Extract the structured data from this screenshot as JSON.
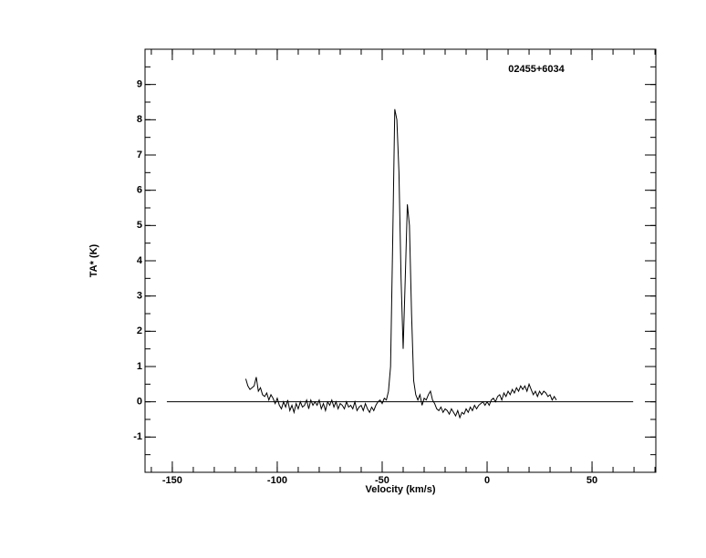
{
  "chart_data": {
    "type": "line",
    "annotation": "02455+6034",
    "xlabel": "Velocity (km/s)",
    "ylabel": "TA* (K)",
    "xlim": [
      -163,
      80.4
    ],
    "ylim": [
      -2,
      10
    ],
    "xticks": [
      -150,
      -100,
      -50,
      0,
      50
    ],
    "yticks": [
      -1,
      0,
      1,
      2,
      3,
      4,
      5,
      6,
      7,
      8,
      9
    ],
    "xminorticks": [
      -160,
      -150,
      -140,
      -130,
      -120,
      -110,
      -100,
      -90,
      -80,
      -70,
      -60,
      -50,
      -40,
      -30,
      -20,
      -10,
      0,
      10,
      20,
      30,
      40,
      50,
      60,
      70,
      80
    ],
    "yminorticks": [
      -2,
      -1.5,
      -1,
      -0.5,
      0,
      0.5,
      1,
      1.5,
      2,
      2.5,
      3,
      3.5,
      4,
      4.5,
      5,
      5.5,
      6,
      6.5,
      7,
      7.5,
      8,
      8.5,
      9,
      9.5,
      10
    ],
    "series": [
      {
        "color": "#000000",
        "x": [
          -115,
          -114,
          -113,
          -112,
          -111,
          -110,
          -109,
          -108,
          -107,
          -106,
          -105,
          -104,
          -103,
          -102,
          -101,
          -100,
          -99,
          -98,
          -97,
          -96,
          -95,
          -94,
          -93,
          -92,
          -91,
          -90,
          -89,
          -88,
          -87,
          -86,
          -85,
          -84,
          -83,
          -82,
          -81,
          -80,
          -79,
          -78,
          -77,
          -76,
          -75,
          -74,
          -73,
          -72,
          -71,
          -70,
          -69,
          -68,
          -67,
          -66,
          -65,
          -64,
          -63,
          -62,
          -61,
          -60,
          -59,
          -58,
          -57,
          -56,
          -55,
          -54,
          -53,
          -52,
          -51,
          -50,
          -49,
          -48,
          -47,
          -46,
          -45,
          -44,
          -43,
          -42,
          -41,
          -40,
          -39,
          -38,
          -37,
          -36,
          -35,
          -34,
          -33,
          -32,
          -31,
          -30,
          -29,
          -28,
          -27,
          -26,
          -25,
          -24,
          -23,
          -22,
          -21,
          -20,
          -19,
          -18,
          -17,
          -16,
          -15,
          -14,
          -13,
          -12,
          -11,
          -10,
          -9,
          -8,
          -7,
          -6,
          -5,
          -4,
          -3,
          -2,
          -1,
          0,
          1,
          2,
          3,
          4,
          5,
          6,
          7,
          8,
          9,
          10,
          11,
          12,
          13,
          14,
          15,
          16,
          17,
          18,
          19,
          20,
          21,
          22,
          23,
          24,
          25,
          26,
          27,
          28,
          29,
          30,
          31,
          32,
          33
        ],
        "values": [
          0.65,
          0.45,
          0.35,
          0.4,
          0.45,
          0.7,
          0.3,
          0.4,
          0.2,
          0.15,
          0.25,
          0.05,
          0.2,
          0.1,
          -0.05,
          0.1,
          -0.1,
          -0.2,
          0.0,
          -0.15,
          0.05,
          -0.25,
          -0.1,
          -0.3,
          -0.05,
          -0.2,
          0.0,
          -0.15,
          -0.1,
          0.05,
          -0.2,
          0.05,
          -0.1,
          0.0,
          -0.1,
          0.05,
          -0.2,
          -0.05,
          -0.25,
          0.0,
          -0.1,
          0.05,
          -0.15,
          0.0,
          -0.2,
          -0.05,
          -0.1,
          -0.2,
          0.0,
          -0.15,
          -0.1,
          -0.2,
          0.0,
          -0.25,
          -0.15,
          -0.1,
          -0.25,
          -0.05,
          -0.2,
          -0.3,
          -0.15,
          -0.25,
          -0.1,
          0.0,
          0.05,
          -0.05,
          0.1,
          0.05,
          0.3,
          1.0,
          4.5,
          8.3,
          8.0,
          6.5,
          3.5,
          1.5,
          3.5,
          5.6,
          5.0,
          2.5,
          0.6,
          0.2,
          0.05,
          0.2,
          -0.1,
          0.1,
          0.05,
          0.2,
          0.3,
          0.05,
          -0.05,
          -0.2,
          -0.25,
          -0.15,
          -0.3,
          -0.2,
          -0.25,
          -0.35,
          -0.2,
          -0.3,
          -0.4,
          -0.25,
          -0.45,
          -0.3,
          -0.35,
          -0.2,
          -0.3,
          -0.15,
          -0.25,
          -0.1,
          -0.2,
          -0.1,
          -0.05,
          0.0,
          -0.1,
          0.0,
          -0.1,
          0.05,
          0.1,
          0.0,
          0.15,
          0.2,
          0.05,
          0.25,
          0.15,
          0.3,
          0.2,
          0.35,
          0.25,
          0.4,
          0.3,
          0.45,
          0.35,
          0.45,
          0.3,
          0.5,
          0.35,
          0.2,
          0.3,
          0.15,
          0.3,
          0.2,
          0.3,
          0.25,
          0.15,
          0.2,
          0.05,
          0.15,
          0.05
        ]
      },
      {
        "color": "#000000",
        "x": [
          -152.6,
          69.6
        ],
        "values": [
          0,
          0
        ]
      }
    ]
  }
}
